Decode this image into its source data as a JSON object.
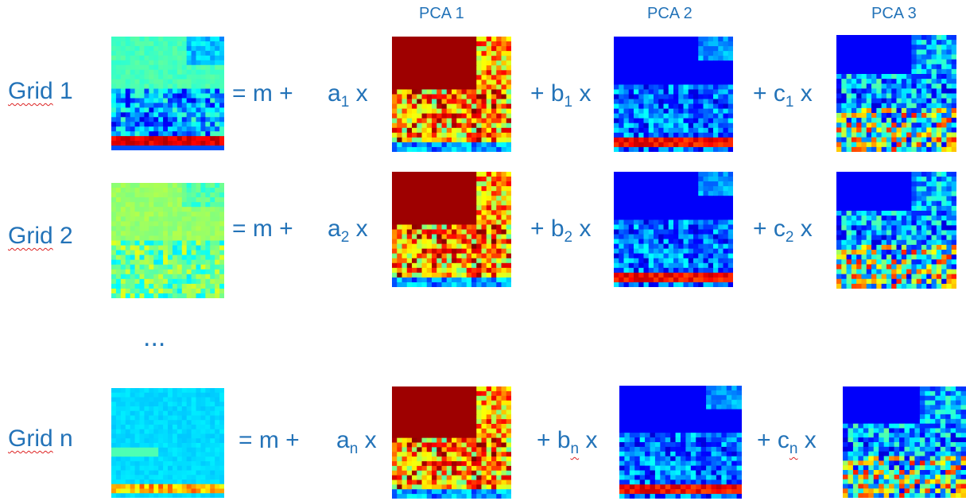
{
  "headers": {
    "pca1": "PCA 1",
    "pca2": "PCA 2",
    "pca3": "PCA 3"
  },
  "rows": [
    {
      "grid_word": "Grid",
      "grid_id": "1",
      "eq_m": "= m + ",
      "a_letter": "a",
      "a_sub": "1",
      "a_x": " x",
      "b_prefix": "+ b",
      "b_sub": "1",
      "b_x": " x",
      "c_prefix": "+ c",
      "c_sub": "1",
      "c_x": " x"
    },
    {
      "grid_word": "Grid",
      "grid_id": "2",
      "eq_m": "= m + ",
      "a_letter": "a",
      "a_sub": "2",
      "a_x": " x",
      "b_prefix": "+ b",
      "b_sub": "2",
      "b_x": " x",
      "c_prefix": "+ c",
      "c_sub": "2",
      "c_x": " x"
    },
    {
      "grid_word": "Grid",
      "grid_id": "n",
      "eq_m": "= m + ",
      "a_letter": "a",
      "a_sub": "n",
      "a_x": " x",
      "b_prefix": "+ b",
      "b_sub": "n",
      "b_x": " x",
      "c_prefix": "+ c",
      "c_sub": "n",
      "c_x": " x"
    }
  ],
  "ellipsis": "...",
  "colors": {
    "text": "#2373b8",
    "spell_underline": "#dd2222",
    "colormap": "jet"
  }
}
